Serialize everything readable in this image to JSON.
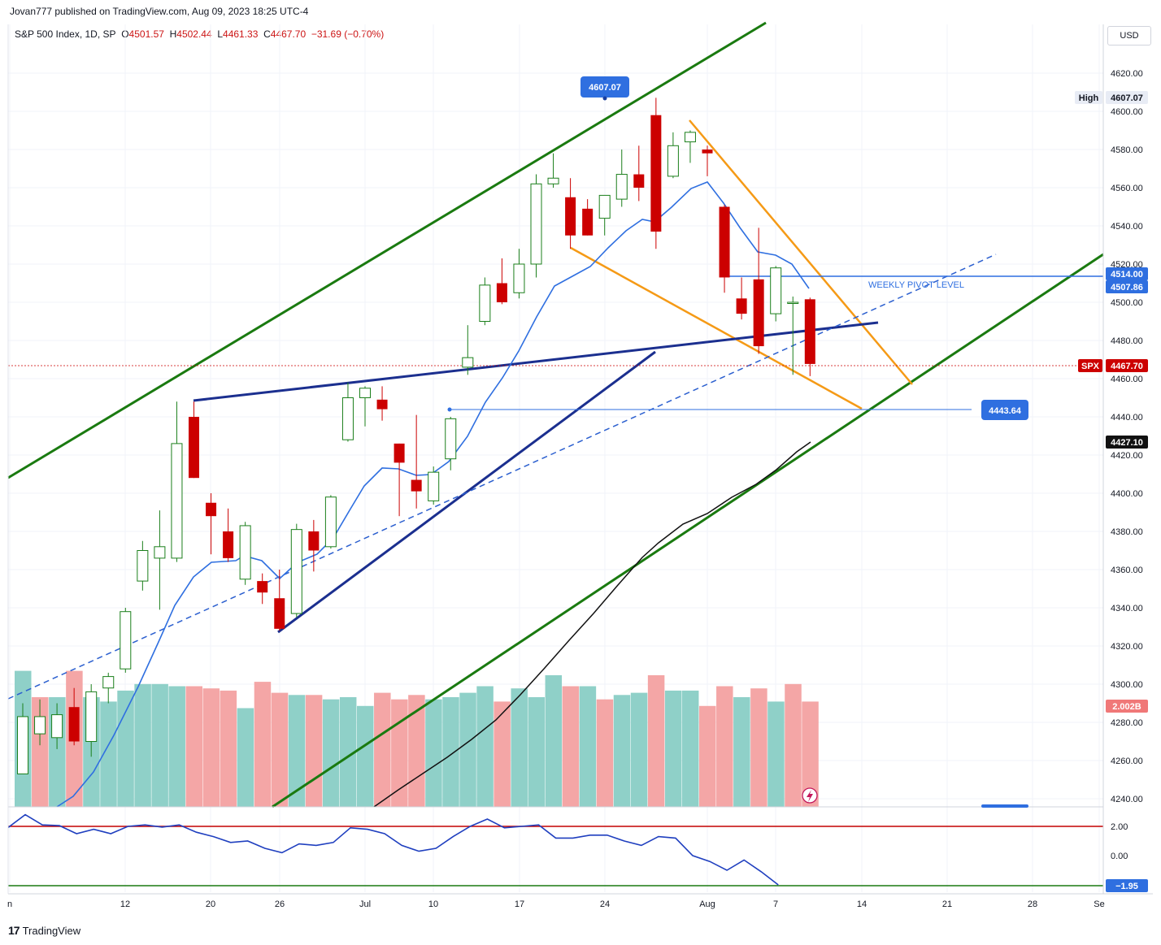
{
  "header": {
    "published": "Jovan777 published on TradingView.com, Aug 09, 2023 18:25 UTC-4"
  },
  "legend": {
    "symbol": "S&P 500 Index, 1D, SP",
    "o_label": "O",
    "o": "4501.57",
    "h_label": "H",
    "h": "4502.44",
    "l_label": "L",
    "l": "4461.33",
    "c_label": "C",
    "c": "4467.70",
    "change": "−31.69 (−0.70%)"
  },
  "currency": "USD",
  "footer": {
    "logo": "17",
    "brand": "TradingView"
  },
  "colors": {
    "up": "#1b7f1b",
    "down": "#cc0000",
    "vol_up": "#8fd0c8",
    "vol_down": "#f4a6a6",
    "channel": "#1a7a10",
    "wedge": "#f59a16",
    "ma_blue": "#2f6fe0",
    "trend_navy": "#1b2f8f"
  },
  "chart_data": {
    "type": "candlestick",
    "symbol": "SPX",
    "timeframe": "1D",
    "ylim": [
      4232,
      4636
    ],
    "y_ticks": [
      "4240.00",
      "4260.00",
      "4280.00",
      "4300.00",
      "4320.00",
      "4340.00",
      "4360.00",
      "4380.00",
      "4400.00",
      "4420.00",
      "4440.00",
      "4460.00",
      "4480.00",
      "4500.00",
      "4520.00",
      "4540.00",
      "4560.00",
      "4580.00",
      "4600.00",
      "4620.00"
    ],
    "x_ticks": [
      "n",
      "12",
      "20",
      "26",
      "Jul",
      "10",
      "17",
      "24",
      "Aug",
      "7",
      "14",
      "21",
      "28",
      "Se"
    ],
    "candles": [
      {
        "o": 4253,
        "h": 4290,
        "l": 4253,
        "c": 4283
      },
      {
        "o": 4274,
        "h": 4292,
        "l": 4268,
        "c": 4283
      },
      {
        "o": 4272,
        "h": 4290,
        "l": 4266,
        "c": 4284
      },
      {
        "o": 4288,
        "h": 4298,
        "l": 4268,
        "c": 4270
      },
      {
        "o": 4270,
        "h": 4300,
        "l": 4262,
        "c": 4296
      },
      {
        "o": 4298,
        "h": 4306,
        "l": 4290,
        "c": 4304
      },
      {
        "o": 4308,
        "h": 4340,
        "l": 4306,
        "c": 4338
      },
      {
        "o": 4354,
        "h": 4375,
        "l": 4349,
        "c": 4370
      },
      {
        "o": 4366,
        "h": 4391,
        "l": 4339,
        "c": 4372
      },
      {
        "o": 4366,
        "h": 4448,
        "l": 4364,
        "c": 4426
      },
      {
        "o": 4440,
        "h": 4448,
        "l": 4408,
        "c": 4408
      },
      {
        "o": 4395,
        "h": 4400,
        "l": 4368,
        "c": 4388
      },
      {
        "o": 4380,
        "h": 4392,
        "l": 4364,
        "c": 4366
      },
      {
        "o": 4355,
        "h": 4385,
        "l": 4352,
        "c": 4383
      },
      {
        "o": 4354,
        "h": 4358,
        "l": 4342,
        "c": 4348
      },
      {
        "o": 4345,
        "h": 4360,
        "l": 4328,
        "c": 4329
      },
      {
        "o": 4337,
        "h": 4384,
        "l": 4335,
        "c": 4381
      },
      {
        "o": 4380,
        "h": 4386,
        "l": 4359,
        "c": 4370
      },
      {
        "o": 4372,
        "h": 4399,
        "l": 4371,
        "c": 4398
      },
      {
        "o": 4428,
        "h": 4458,
        "l": 4427,
        "c": 4450
      },
      {
        "o": 4450,
        "h": 4456,
        "l": 4435,
        "c": 4455
      },
      {
        "o": 4449,
        "h": 4456,
        "l": 4438,
        "c": 4444
      },
      {
        "o": 4426,
        "h": 4426,
        "l": 4388,
        "c": 4416
      },
      {
        "o": 4407,
        "h": 4441,
        "l": 4392,
        "c": 4401
      },
      {
        "o": 4396,
        "h": 4414,
        "l": 4394,
        "c": 4411
      },
      {
        "o": 4418,
        "h": 4440,
        "l": 4412,
        "c": 4439
      },
      {
        "o": 4466,
        "h": 4488,
        "l": 4462,
        "c": 4471
      },
      {
        "o": 4490,
        "h": 4513,
        "l": 4488,
        "c": 4509
      },
      {
        "o": 4510,
        "h": 4523,
        "l": 4499,
        "c": 4500
      },
      {
        "o": 4505,
        "h": 4528,
        "l": 4502,
        "c": 4520
      },
      {
        "o": 4520,
        "h": 4567,
        "l": 4513,
        "c": 4562
      },
      {
        "o": 4562,
        "h": 4578,
        "l": 4560,
        "c": 4565
      },
      {
        "o": 4555,
        "h": 4565,
        "l": 4528,
        "c": 4535
      },
      {
        "o": 4549,
        "h": 4554,
        "l": 4535,
        "c": 4535
      },
      {
        "o": 4544,
        "h": 4554,
        "l": 4535,
        "c": 4556
      },
      {
        "o": 4554,
        "h": 4580,
        "l": 4550,
        "c": 4567
      },
      {
        "o": 4567,
        "h": 4582,
        "l": 4553,
        "c": 4560
      },
      {
        "o": 4598,
        "h": 4607.07,
        "l": 4528,
        "c": 4537
      },
      {
        "o": 4566,
        "h": 4589,
        "l": 4565,
        "c": 4582
      },
      {
        "o": 4584,
        "h": 4590,
        "l": 4573,
        "c": 4589
      },
      {
        "o": 4580,
        "h": 4582,
        "l": 4566,
        "c": 4578
      },
      {
        "o": 4550,
        "h": 4551,
        "l": 4505,
        "c": 4513
      },
      {
        "o": 4502,
        "h": 4513,
        "l": 4491,
        "c": 4494
      },
      {
        "o": 4512,
        "h": 4539,
        "l": 4473,
        "c": 4477
      },
      {
        "o": 4494,
        "h": 4519,
        "l": 4490,
        "c": 4518
      },
      {
        "o": 4500,
        "h": 4503,
        "l": 4462,
        "c": 4500
      },
      {
        "o": 4501.57,
        "h": 4502.44,
        "l": 4461.33,
        "c": 4467.7
      }
    ],
    "volume_up": [
      true,
      false,
      true,
      false,
      true,
      true,
      true,
      true,
      true,
      true,
      false,
      false,
      false,
      true,
      false,
      false,
      true,
      false,
      true,
      true,
      true,
      false,
      false,
      false,
      true,
      true,
      true,
      true,
      false,
      true,
      true,
      true,
      false,
      true,
      false,
      true,
      true,
      false,
      true,
      true,
      false,
      false,
      true,
      false,
      true,
      false,
      false
    ],
    "volume_heights": [
      0.62,
      0.5,
      0.5,
      0.62,
      0.5,
      0.48,
      0.53,
      0.56,
      0.56,
      0.55,
      0.55,
      0.54,
      0.53,
      0.45,
      0.57,
      0.52,
      0.51,
      0.51,
      0.49,
      0.5,
      0.46,
      0.52,
      0.49,
      0.51,
      0.49,
      0.5,
      0.52,
      0.55,
      0.48,
      0.54,
      0.5,
      0.6,
      0.55,
      0.55,
      0.49,
      0.51,
      0.52,
      0.6,
      0.53,
      0.53,
      0.46,
      0.55,
      0.5,
      0.54,
      0.48,
      0.56,
      0.48
    ],
    "price_labels": {
      "high_tag": "High",
      "high_value": "4607.07",
      "peak_callout": "4607.07",
      "pivot_1": "4514.00",
      "pivot_2": "4507.86",
      "spx_tag": "SPX",
      "last_price": "4467.70",
      "support_callout": "4443.64",
      "ma_value": "4427.10",
      "volume_value": "2.002B"
    },
    "annotations": {
      "pivot_text": "WEEKLY PIVOT LEVEL"
    },
    "oscillator": {
      "upper_level": 2.0,
      "lower_level": -1.95,
      "ticks": [
        "2.00",
        "0.00"
      ],
      "last_label": "−1.95",
      "values": [
        1.92,
        2.8,
        2.1,
        2.05,
        1.5,
        1.8,
        1.5,
        2.0,
        2.1,
        1.95,
        2.1,
        1.6,
        1.3,
        0.9,
        1.0,
        0.5,
        0.2,
        0.8,
        0.7,
        0.9,
        1.9,
        1.8,
        1.5,
        0.7,
        0.3,
        0.5,
        1.3,
        2.0,
        2.5,
        1.9,
        2.0,
        2.1,
        1.2,
        1.2,
        1.4,
        1.4,
        1.0,
        0.7,
        1.3,
        1.2,
        0.0,
        -0.4,
        -1.0,
        -0.3,
        -1.1,
        -2.0
      ]
    }
  }
}
